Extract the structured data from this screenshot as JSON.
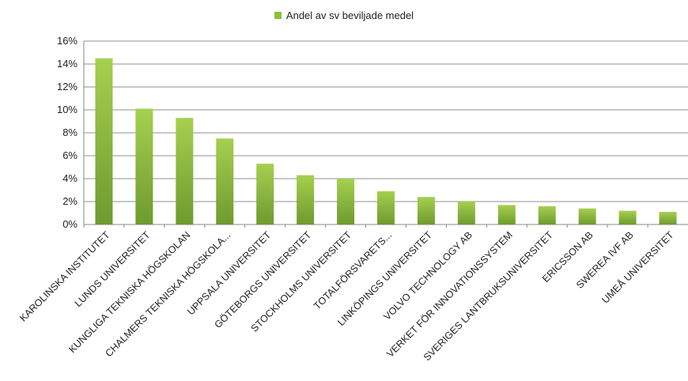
{
  "chart_data": {
    "type": "bar",
    "title": "",
    "xlabel": "",
    "ylabel": "",
    "legend": {
      "position": "top",
      "entries": [
        "Andel av sv beviljade medel"
      ]
    },
    "grid": true,
    "ylim": [
      0,
      16
    ],
    "y_ticks": [
      "0%",
      "2%",
      "4%",
      "6%",
      "8%",
      "10%",
      "12%",
      "14%",
      "16%"
    ],
    "categories": [
      "KAROLINSKA INSTITUTET",
      "LUNDS UNIVERSITET",
      "KUNGLIGA TEKNISKA HÖGSKOLAN",
      "CHALMERS TEKNISKA HÖGSKOLA...",
      "UPPSALA UNIVERSITET",
      "GÖTEBORGS UNIVERSITET",
      "STOCKHOLMS UNIVERSITET",
      "TOTALFÖRSVARETS...",
      "LINKÖPINGS UNIVERSITET",
      "VOLVO TECHNOLOGY AB",
      "VERKET FÖR INNOVATIONSSYSTEM",
      "SVERIGES LANTBRUKSUNIVERSITET",
      "ERICSSON AB",
      "SWEREA IVF AB",
      "UMEÅ UNIVERSITET"
    ],
    "series": [
      {
        "name": "Andel av sv beviljade medel",
        "color": "#8bbf3a",
        "values": [
          14.5,
          10.1,
          9.3,
          7.5,
          5.3,
          4.3,
          4.0,
          2.9,
          2.4,
          2.0,
          1.7,
          1.6,
          1.4,
          1.2,
          1.1
        ]
      }
    ]
  }
}
